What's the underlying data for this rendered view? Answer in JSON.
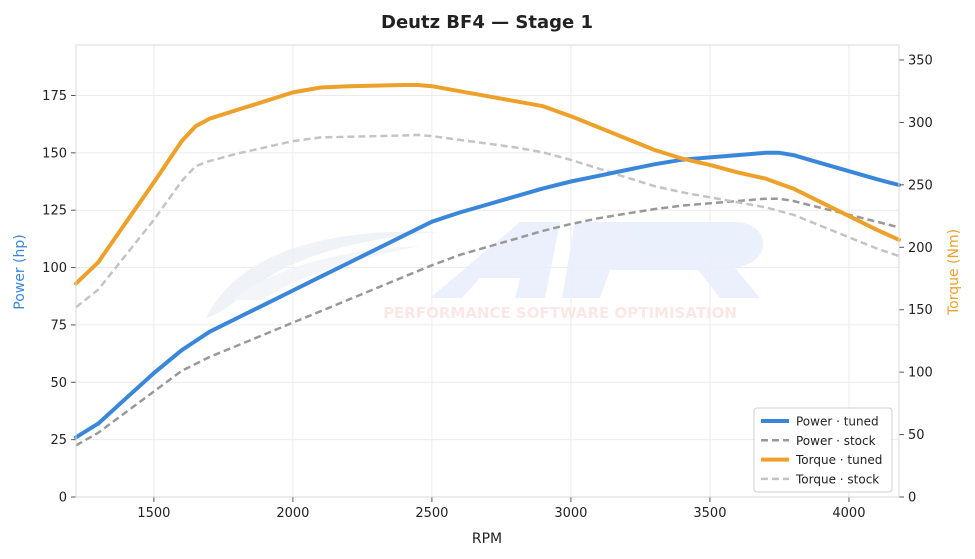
{
  "chart_data": {
    "type": "line",
    "title": "Deutz BF4 — Stage 1",
    "xlabel": "RPM",
    "ylabel_left": "Power (hp)",
    "ylabel_right": "Torque (Nm)",
    "xlim": [
      1220,
      4180
    ],
    "ylim_left": [
      0,
      197
    ],
    "ylim_right": [
      0,
      362
    ],
    "x_ticks": [
      1500,
      2000,
      2500,
      3000,
      3500,
      4000
    ],
    "y_ticks_left": [
      0,
      25,
      50,
      75,
      100,
      125,
      150,
      175
    ],
    "y_ticks_right": [
      0,
      50,
      100,
      150,
      200,
      250,
      300,
      350
    ],
    "grid": true,
    "legend_position": "bottom-right",
    "watermark": "PERFORMANCE SOFTWARE OPTIMISATION",
    "series": [
      {
        "name": "Power · tuned",
        "axis": "left",
        "color": "#3a87d9",
        "style": "solid",
        "x": [
          1220,
          1300,
          1400,
          1500,
          1600,
          1650,
          1700,
          1800,
          1900,
          2000,
          2100,
          2200,
          2300,
          2400,
          2500,
          2600,
          2700,
          2800,
          2900,
          3000,
          3100,
          3200,
          3300,
          3400,
          3500,
          3600,
          3700,
          3750,
          3800,
          3900,
          4000,
          4100,
          4180
        ],
        "values": [
          26,
          32,
          43,
          54,
          64,
          68,
          72,
          78,
          84,
          90,
          96,
          102,
          108,
          114,
          120,
          124,
          127.5,
          131,
          134.5,
          137.5,
          140,
          142.5,
          145,
          147,
          148,
          149,
          150,
          150,
          149,
          145.5,
          142,
          138.5,
          136
        ]
      },
      {
        "name": "Power · stock",
        "axis": "left",
        "color": "#999999",
        "style": "dashed",
        "x": [
          1220,
          1300,
          1400,
          1500,
          1600,
          1700,
          1800,
          1900,
          2000,
          2100,
          2200,
          2300,
          2400,
          2500,
          2600,
          2700,
          2800,
          2900,
          3000,
          3100,
          3200,
          3300,
          3400,
          3500,
          3600,
          3700,
          3750,
          3800,
          3900,
          4000,
          4100,
          4180
        ],
        "values": [
          22.5,
          28,
          37,
          46,
          55,
          61,
          66,
          71,
          76,
          81,
          86,
          91,
          96,
          101,
          105.5,
          109,
          112.5,
          116,
          119,
          121.5,
          123.5,
          125.5,
          127,
          128,
          129,
          130,
          130,
          129,
          126,
          123,
          120,
          117.5
        ]
      },
      {
        "name": "Torque · tuned",
        "axis": "right",
        "color": "#eda12b",
        "style": "solid",
        "x": [
          1220,
          1300,
          1400,
          1500,
          1600,
          1650,
          1700,
          1800,
          1900,
          2000,
          2100,
          2200,
          2300,
          2400,
          2450,
          2500,
          2600,
          2700,
          2800,
          2900,
          3000,
          3100,
          3200,
          3300,
          3400,
          3500,
          3600,
          3700,
          3800,
          3900,
          4000,
          4100,
          4180
        ],
        "values": [
          171,
          188,
          220,
          252,
          285,
          297,
          303,
          310,
          317,
          324,
          328,
          329,
          329.5,
          330,
          330,
          329,
          325,
          321,
          317,
          313,
          305,
          296,
          287,
          278,
          271,
          266,
          260,
          255,
          247,
          236,
          225,
          214,
          206
        ]
      },
      {
        "name": "Torque · stock",
        "axis": "right",
        "color": "#c4c4c4",
        "style": "dashed",
        "x": [
          1220,
          1300,
          1400,
          1500,
          1600,
          1650,
          1700,
          1800,
          1900,
          2000,
          2100,
          2200,
          2300,
          2400,
          2450,
          2500,
          2600,
          2700,
          2800,
          2900,
          3000,
          3100,
          3200,
          3300,
          3400,
          3500,
          3600,
          3700,
          3800,
          3900,
          4000,
          4100,
          4180
        ],
        "values": [
          152,
          166,
          194,
          222,
          253,
          265,
          269,
          275,
          280,
          285,
          288,
          288.5,
          289,
          289.5,
          290,
          289,
          286,
          283,
          280,
          276,
          270,
          263,
          256,
          249,
          244,
          240,
          236,
          232,
          226,
          217,
          208,
          199,
          193
        ]
      }
    ]
  }
}
